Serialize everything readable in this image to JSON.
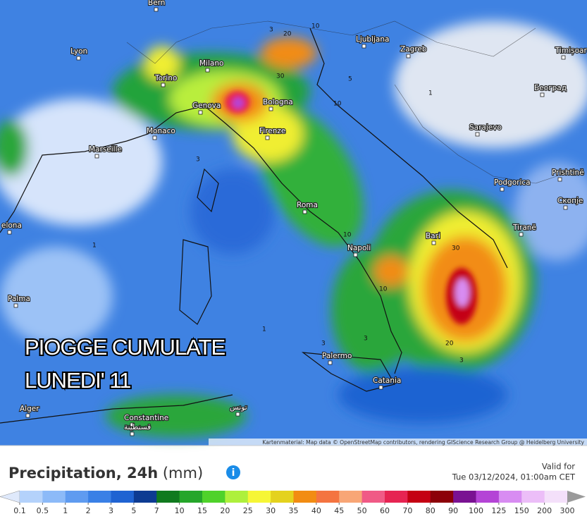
{
  "map": {
    "overlay_title": [
      "PIOGGE CUMULATE",
      "LUNEDI' 11"
    ],
    "cities": [
      "Bern",
      "Lyon",
      "Milano",
      "Torino",
      "Ljubljana",
      "Zagreb",
      "Timișoara",
      "Bologna",
      "Genova",
      "Monaco",
      "Marseille",
      "Firenze",
      "Sarajevo",
      "Београд",
      "Prishtinë",
      "Podgorica",
      "Roma",
      "Скопје",
      "Tiranë",
      "Bari",
      "Napoli",
      "elona",
      "Palma",
      "Palermo",
      "Catania",
      "Alger",
      "Constantine",
      "قسنطينة",
      "تونس"
    ],
    "contour_labels": [
      "3",
      "20",
      "10",
      "30",
      "5",
      "10",
      "3",
      "1",
      "1",
      "10",
      "30",
      "10",
      "20",
      "3",
      "3",
      "1",
      "3"
    ],
    "attribution": "Kartenmaterial: Map data © OpenStreetMap contributors, rendering GIScience Research Group @ Heidelberg University"
  },
  "legend": {
    "title": "Precipitation, 24h",
    "unit": "(mm)",
    "valid_label": "Valid for",
    "valid_time": "Tue 03/12/2024, 01:00am CET",
    "labels": [
      0.1,
      0.5,
      1,
      2,
      3,
      5,
      7,
      10,
      15,
      20,
      25,
      30,
      35,
      40,
      45,
      50,
      60,
      70,
      80,
      90,
      100,
      125,
      150,
      200,
      300
    ],
    "colors": [
      "#b4d2fb",
      "#8cbaf8",
      "#5f9bf0",
      "#3a80e6",
      "#1f63d2",
      "#0d3b92",
      "#107a1e",
      "#25a62a",
      "#4fd22a",
      "#aef03c",
      "#f6f636",
      "#e4d21e",
      "#f28c12",
      "#f47440",
      "#f8a676",
      "#f05a86",
      "#e62452",
      "#c40012",
      "#8c0008",
      "#7a1292",
      "#b444d6",
      "#d88cf2",
      "#ecbef8",
      "#f4e0fa"
    ],
    "low_color": "#dfe9fb",
    "high_color": "#9a9a9a"
  }
}
